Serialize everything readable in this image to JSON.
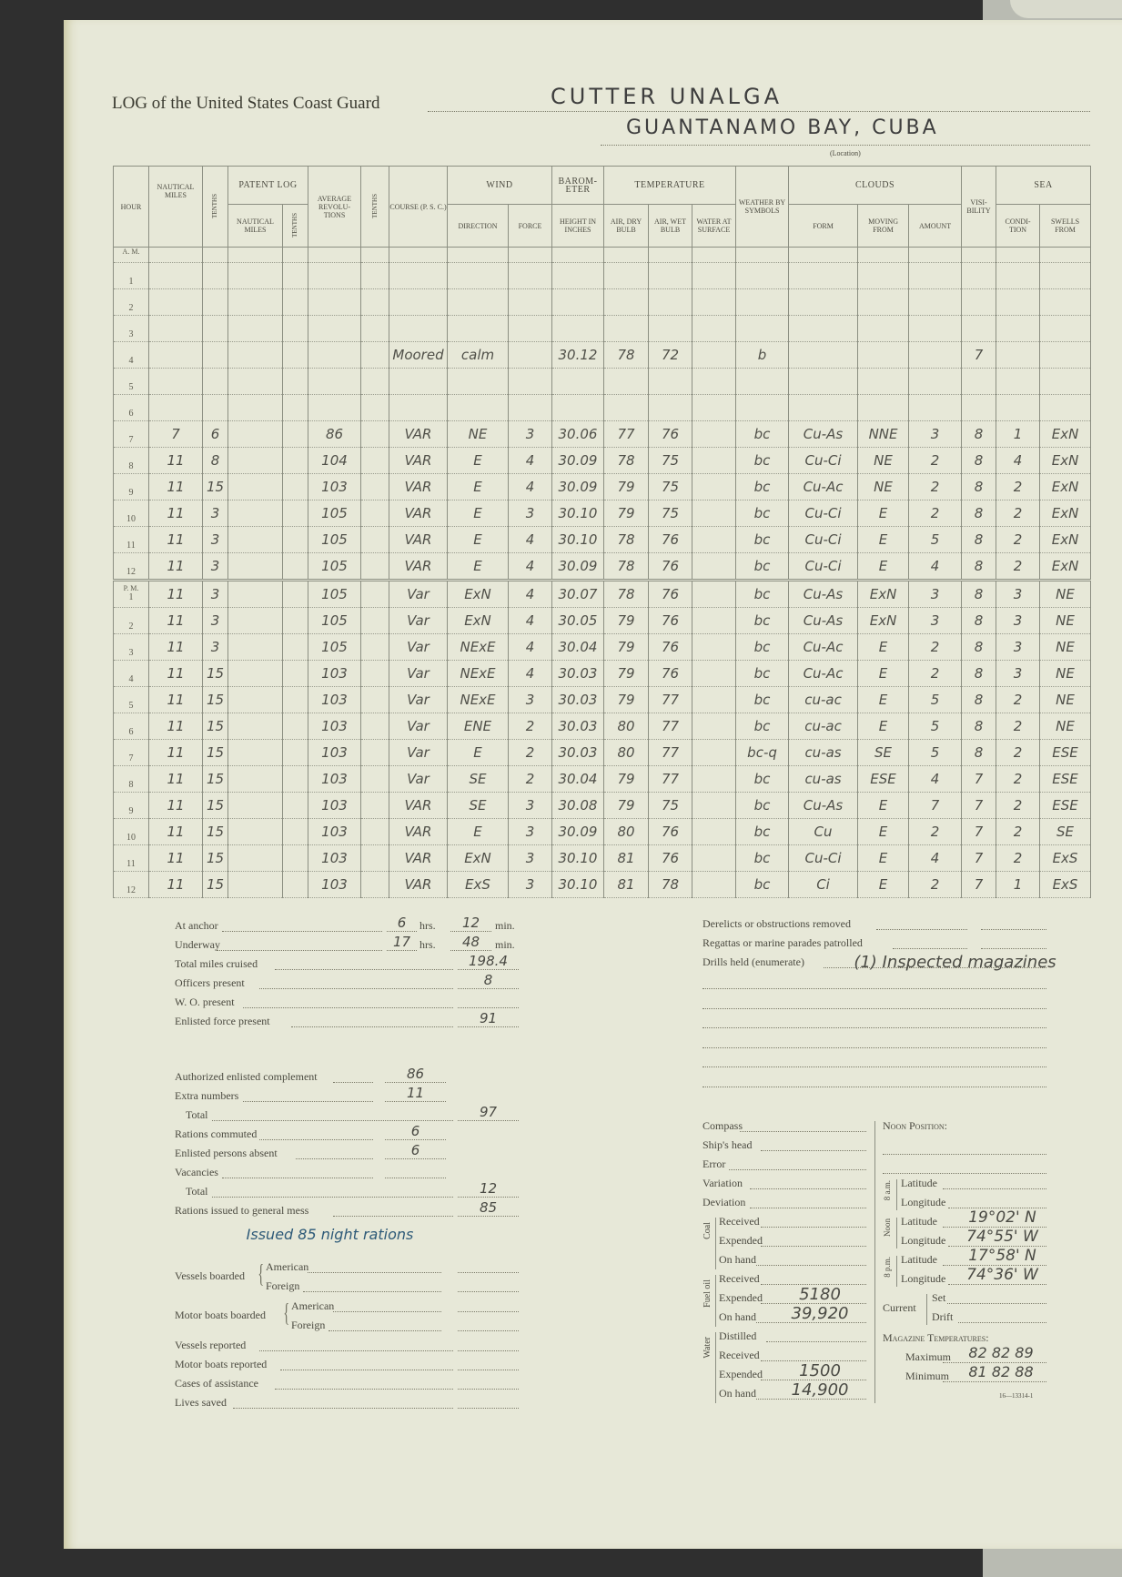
{
  "header": {
    "log_title": "LOG of the United States Coast Guard",
    "vessel": "CUTTER UNALGA",
    "location": "GUANTANAMO BAY, CUBA",
    "location_label": "(Location)"
  },
  "table": {
    "group_headers": {
      "patent_log": "Patent Log",
      "wind": "Wind",
      "barometer": "Barom-eter",
      "temperature": "Temperature",
      "clouds": "Clouds",
      "sea": "Sea"
    },
    "column_headers": {
      "hour": "Hour",
      "nautical_miles": "Nautical Miles",
      "tenths": "Tenths",
      "patent_nautical_miles": "Nautical Miles",
      "patent_tenths": "Tenths",
      "average_revolutions": "Average Revolu-tions",
      "rev_tenths": "Tenths",
      "course": "Course (P. S. C.)",
      "wind_direction": "Direction",
      "wind_force": "Force",
      "height_in_inches": "Height in Inches",
      "air_dry_bulb": "Air, Dry Bulb",
      "air_wet_bulb": "Air, Wet Bulb",
      "water_at_surface": "Water at Surface",
      "weather_by_symbols": "Weather by Symbols",
      "cloud_form": "Form",
      "cloud_moving_from": "Moving From",
      "cloud_amount": "Amount",
      "visibility": "Visi-bility",
      "sea_condition": "Condi-tion",
      "swells_from": "Swells From"
    },
    "am_label": "A. M.",
    "pm_label": "P. M.",
    "am_rows": [
      [
        "1",
        "",
        "",
        "",
        "",
        "",
        "",
        "",
        "",
        "",
        "",
        "",
        "",
        "",
        "",
        "",
        "",
        "",
        "",
        "",
        ""
      ],
      [
        "2",
        "",
        "",
        "",
        "",
        "",
        "",
        "",
        "",
        "",
        "",
        "",
        "",
        "",
        "",
        "",
        "",
        "",
        "",
        "",
        ""
      ],
      [
        "3",
        "",
        "",
        "",
        "",
        "",
        "",
        "",
        "",
        "",
        "",
        "",
        "",
        "",
        "",
        "",
        "",
        "",
        "",
        "",
        ""
      ],
      [
        "4",
        "",
        "",
        "",
        "",
        "",
        "",
        "Moored",
        "calm",
        "",
        "30.12",
        "78",
        "72",
        "",
        "b",
        "",
        "",
        "",
        "7",
        "",
        ""
      ],
      [
        "5",
        "",
        "",
        "",
        "",
        "",
        "",
        "",
        "",
        "",
        "",
        "",
        "",
        "",
        "",
        "",
        "",
        "",
        "",
        "",
        ""
      ],
      [
        "6",
        "",
        "",
        "",
        "",
        "",
        "",
        "",
        "",
        "",
        "",
        "",
        "",
        "",
        "",
        "",
        "",
        "",
        "",
        "",
        ""
      ],
      [
        "7",
        "7",
        "6",
        "",
        "",
        "86",
        "",
        "VAR",
        "NE",
        "3",
        "30.06",
        "77",
        "76",
        "",
        "bc",
        "Cu-As",
        "NNE",
        "3",
        "8",
        "1",
        "ExN"
      ],
      [
        "8",
        "11",
        "8",
        "",
        "",
        "104",
        "",
        "VAR",
        "E",
        "4",
        "30.09",
        "78",
        "75",
        "",
        "bc",
        "Cu-Ci",
        "NE",
        "2",
        "8",
        "4",
        "ExN"
      ],
      [
        "9",
        "11",
        "15",
        "",
        "",
        "103",
        "",
        "VAR",
        "E",
        "4",
        "30.09",
        "79",
        "75",
        "",
        "bc",
        "Cu-Ac",
        "NE",
        "2",
        "8",
        "2",
        "ExN"
      ],
      [
        "10",
        "11",
        "3",
        "",
        "",
        "105",
        "",
        "VAR",
        "E",
        "3",
        "30.10",
        "79",
        "75",
        "",
        "bc",
        "Cu-Ci",
        "E",
        "2",
        "8",
        "2",
        "ExN"
      ],
      [
        "11",
        "11",
        "3",
        "",
        "",
        "105",
        "",
        "VAR",
        "E",
        "4",
        "30.10",
        "78",
        "76",
        "",
        "bc",
        "Cu-Ci",
        "E",
        "5",
        "8",
        "2",
        "ExN"
      ],
      [
        "12",
        "11",
        "3",
        "",
        "",
        "105",
        "",
        "VAR",
        "E",
        "4",
        "30.09",
        "78",
        "76",
        "",
        "bc",
        "Cu-Ci",
        "E",
        "4",
        "8",
        "2",
        "ExN"
      ]
    ],
    "pm_rows": [
      [
        "1",
        "11",
        "3",
        "",
        "",
        "105",
        "",
        "Var",
        "ExN",
        "4",
        "30.07",
        "78",
        "76",
        "",
        "bc",
        "Cu-As",
        "ExN",
        "3",
        "8",
        "3",
        "NE"
      ],
      [
        "2",
        "11",
        "3",
        "",
        "",
        "105",
        "",
        "Var",
        "ExN",
        "4",
        "30.05",
        "79",
        "76",
        "",
        "bc",
        "Cu-As",
        "ExN",
        "3",
        "8",
        "3",
        "NE"
      ],
      [
        "3",
        "11",
        "3",
        "",
        "",
        "105",
        "",
        "Var",
        "NExE",
        "4",
        "30.04",
        "79",
        "76",
        "",
        "bc",
        "Cu-Ac",
        "E",
        "2",
        "8",
        "3",
        "NE"
      ],
      [
        "4",
        "11",
        "15",
        "",
        "",
        "103",
        "",
        "Var",
        "NExE",
        "4",
        "30.03",
        "79",
        "76",
        "",
        "bc",
        "Cu-Ac",
        "E",
        "2",
        "8",
        "3",
        "NE"
      ],
      [
        "5",
        "11",
        "15",
        "",
        "",
        "103",
        "",
        "Var",
        "NExE",
        "3",
        "30.03",
        "79",
        "77",
        "",
        "bc",
        "cu-ac",
        "E",
        "5",
        "8",
        "2",
        "NE"
      ],
      [
        "6",
        "11",
        "15",
        "",
        "",
        "103",
        "",
        "Var",
        "ENE",
        "2",
        "30.03",
        "80",
        "77",
        "",
        "bc",
        "cu-ac",
        "E",
        "5",
        "8",
        "2",
        "NE"
      ],
      [
        "7",
        "11",
        "15",
        "",
        "",
        "103",
        "",
        "Var",
        "E",
        "2",
        "30.03",
        "80",
        "77",
        "",
        "bc-q",
        "cu-as",
        "SE",
        "5",
        "8",
        "2",
        "ESE"
      ],
      [
        "8",
        "11",
        "15",
        "",
        "",
        "103",
        "",
        "Var",
        "SE",
        "2",
        "30.04",
        "79",
        "77",
        "",
        "bc",
        "cu-as",
        "ESE",
        "4",
        "7",
        "2",
        "ESE"
      ],
      [
        "9",
        "11",
        "15",
        "",
        "",
        "103",
        "",
        "VAR",
        "SE",
        "3",
        "30.08",
        "79",
        "75",
        "",
        "bc",
        "Cu-As",
        "E",
        "7",
        "7",
        "2",
        "ESE"
      ],
      [
        "10",
        "11",
        "15",
        "",
        "",
        "103",
        "",
        "VAR",
        "E",
        "3",
        "30.09",
        "80",
        "76",
        "",
        "bc",
        "Cu",
        "E",
        "2",
        "7",
        "2",
        "SE"
      ],
      [
        "11",
        "11",
        "15",
        "",
        "",
        "103",
        "",
        "VAR",
        "ExN",
        "3",
        "30.10",
        "81",
        "76",
        "",
        "bc",
        "Cu-Ci",
        "E",
        "4",
        "7",
        "2",
        "ExS"
      ],
      [
        "12",
        "11",
        "15",
        "",
        "",
        "103",
        "",
        "VAR",
        "ExS",
        "3",
        "30.10",
        "81",
        "78",
        "",
        "bc",
        "Ci",
        "E",
        "2",
        "7",
        "1",
        "ExS"
      ]
    ],
    "blue_ink_pm_rows": 4
  },
  "summary": {
    "hrs_unit": "hrs.",
    "min_unit": "min.",
    "at_anchor": {
      "label": "At anchor",
      "hrs": "6",
      "min": "12"
    },
    "underway": {
      "label": "Underway",
      "hrs": "17",
      "min": "48"
    },
    "fields": [
      {
        "label": "Total miles cruised",
        "value": "198.4"
      },
      {
        "label": "Officers present",
        "value": "8"
      },
      {
        "label": "W. O. present",
        "value": ""
      },
      {
        "label": "Enlisted force present",
        "value": "91"
      }
    ],
    "complement": [
      {
        "label": "Authorized enlisted complement",
        "value": "86",
        "col": "mid"
      },
      {
        "label": "Extra numbers",
        "value": "11",
        "col": "mid"
      },
      {
        "label": "Total",
        "value": "97",
        "col": "right"
      },
      {
        "label": "Rations commuted",
        "value": "6",
        "col": "mid"
      },
      {
        "label": "Enlisted persons absent",
        "value": "6",
        "col": "mid"
      },
      {
        "label": "Vacancies",
        "value": "",
        "col": "mid"
      },
      {
        "label": "Total",
        "value": "12",
        "col": "right"
      },
      {
        "label": "Rations issued to general mess",
        "value": "85",
        "col": "right"
      }
    ],
    "rations_note": "Issued 85 night rations",
    "vessels_boarded": {
      "label": "Vessels boarded",
      "american": "American",
      "foreign": "Foreign"
    },
    "motor_boats_boarded": {
      "label": "Motor boats boarded",
      "american": "American",
      "foreign": "Foreign"
    },
    "other": [
      {
        "label": "Vessels reported",
        "value": ""
      },
      {
        "label": "Motor boats reported",
        "value": ""
      },
      {
        "label": "Cases of assistance",
        "value": ""
      },
      {
        "label": "Lives saved",
        "value": ""
      }
    ]
  },
  "operations": {
    "derelicts": {
      "label": "Derelicts or obstructions removed",
      "value": ""
    },
    "regattas": {
      "label": "Regattas or marine parades patrolled",
      "value": ""
    },
    "drills": {
      "label": "Drills held (enumerate)",
      "value": "(1) Inspected magazines"
    }
  },
  "compass": {
    "fields": [
      {
        "label": "Compass",
        "value": ""
      },
      {
        "label": "Ship's head",
        "value": ""
      },
      {
        "label": "Error",
        "value": ""
      },
      {
        "label": "Variation",
        "value": ""
      },
      {
        "label": "Deviation",
        "value": ""
      }
    ],
    "coal": {
      "label": "Coal",
      "received": "",
      "expended": "",
      "on_hand": ""
    },
    "fuel_oil": {
      "label": "Fuel oil",
      "received": "",
      "expended": "5180",
      "on_hand": "39,920"
    },
    "water": {
      "label": "Water",
      "distilled": "",
      "received": "",
      "expended": "1500",
      "on_hand": "14,900"
    },
    "labels": {
      "received": "Received",
      "expended": "Expended",
      "on_hand": "On hand",
      "distilled": "Distilled"
    }
  },
  "noon_position": {
    "title": "Noon Position:",
    "am8": {
      "label": "8 a.m.",
      "latitude": "",
      "longitude": ""
    },
    "noon": {
      "label": "Noon",
      "latitude": "19°02' N",
      "longitude": "74°55' W"
    },
    "pm8": {
      "label": "8 p.m.",
      "latitude": "17°58' N",
      "longitude": "74°36' W"
    },
    "latitude_label": "Latitude",
    "longitude_label": "Longitude",
    "current": {
      "label": "Current",
      "set": "Set",
      "drift": "Drift",
      "set_value": "",
      "drift_value": ""
    }
  },
  "magazine": {
    "title": "Magazine Temperatures:",
    "maximum_label": "Maximum",
    "maximum": "82  82  89",
    "minimum_label": "Minimum",
    "minimum": "81  82  88"
  },
  "form_number": "16—13314-1",
  "colors": {
    "paper": "#e7e8d8",
    "rule": "#8c8f82",
    "pencil": "#4f4f4a",
    "blue_ink": "#1f5266"
  }
}
